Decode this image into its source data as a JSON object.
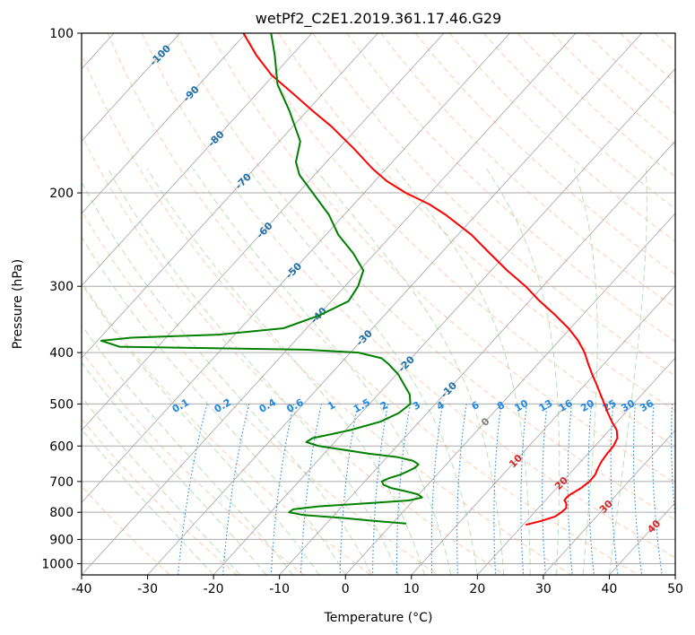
{
  "chart_data": {
    "type": "line",
    "subtype": "skew-t log-p diagram",
    "title": "wetPf2_C2E1.2019.361.17.46.G29",
    "xlabel": "Temperature (°C)",
    "ylabel": "Pressure (hPa)",
    "xlim": [
      -40,
      50
    ],
    "ylim": [
      1050,
      100
    ],
    "y_scale": "log",
    "x_ticks": [
      -40,
      -30,
      -20,
      -10,
      0,
      10,
      20,
      30,
      40,
      50
    ],
    "y_ticks": [
      100,
      200,
      300,
      400,
      500,
      600,
      700,
      800,
      900,
      1000
    ],
    "grid": "horizontal at pressure ticks",
    "series": [
      {
        "role": "temperature",
        "color": "#ff0000",
        "points": [
          [
            845,
            20.4
          ],
          [
            830,
            22.3
          ],
          [
            815,
            23.7
          ],
          [
            800,
            24.1
          ],
          [
            785,
            24.2
          ],
          [
            770,
            23.6
          ],
          [
            760,
            22.9
          ],
          [
            750,
            22.8
          ],
          [
            740,
            23.0
          ],
          [
            720,
            23.7
          ],
          [
            700,
            24.1
          ],
          [
            680,
            24.0
          ],
          [
            660,
            23.5
          ],
          [
            640,
            23.1
          ],
          [
            620,
            22.9
          ],
          [
            600,
            22.8
          ],
          [
            580,
            22.3
          ],
          [
            560,
            21.1
          ],
          [
            540,
            19.2
          ],
          [
            520,
            17.4
          ],
          [
            500,
            15.6
          ],
          [
            460,
            11.8
          ],
          [
            440,
            9.7
          ],
          [
            420,
            7.6
          ],
          [
            400,
            5.5
          ],
          [
            380,
            2.9
          ],
          [
            360,
            -0.3
          ],
          [
            340,
            -4.1
          ],
          [
            320,
            -8.4
          ],
          [
            300,
            -12.6
          ],
          [
            280,
            -17.6
          ],
          [
            260,
            -22.6
          ],
          [
            240,
            -27.9
          ],
          [
            220,
            -34.6
          ],
          [
            210,
            -38.6
          ],
          [
            200,
            -43.7
          ],
          [
            190,
            -48.2
          ],
          [
            180,
            -52.1
          ],
          [
            165,
            -57.7
          ],
          [
            150,
            -64.1
          ],
          [
            140,
            -69.2
          ],
          [
            130,
            -74.5
          ],
          [
            120,
            -80.3
          ],
          [
            110,
            -85.4
          ],
          [
            100,
            -90.4
          ]
        ]
      },
      {
        "role": "dewpoint",
        "color": "#008000",
        "points": [
          [
            840,
            2.1
          ],
          [
            830,
            -3.4
          ],
          [
            820,
            -8.3
          ],
          [
            810,
            -14.6
          ],
          [
            800,
            -17.2
          ],
          [
            790,
            -17.0
          ],
          [
            780,
            -13.6
          ],
          [
            770,
            -6.8
          ],
          [
            760,
            -0.7
          ],
          [
            750,
            0.9
          ],
          [
            740,
            -0.2
          ],
          [
            730,
            -2.5
          ],
          [
            720,
            -5.1
          ],
          [
            710,
            -6.7
          ],
          [
            700,
            -7.4
          ],
          [
            690,
            -6.8
          ],
          [
            680,
            -5.6
          ],
          [
            670,
            -4.9
          ],
          [
            660,
            -4.3
          ],
          [
            650,
            -4.2
          ],
          [
            640,
            -5.5
          ],
          [
            630,
            -8.3
          ],
          [
            620,
            -13.3
          ],
          [
            600,
            -21.9
          ],
          [
            590,
            -24.3
          ],
          [
            580,
            -23.9
          ],
          [
            570,
            -21.6
          ],
          [
            560,
            -19.3
          ],
          [
            540,
            -15.9
          ],
          [
            520,
            -14.3
          ],
          [
            500,
            -13.8
          ],
          [
            480,
            -15.2
          ],
          [
            460,
            -17.4
          ],
          [
            440,
            -19.7
          ],
          [
            420,
            -22.7
          ],
          [
            410,
            -24.5
          ],
          [
            400,
            -28.8
          ],
          [
            395,
            -37.2
          ],
          [
            390,
            -65.8
          ],
          [
            380,
            -69.4
          ],
          [
            375,
            -65.3
          ],
          [
            370,
            -52.5
          ],
          [
            360,
            -43.5
          ],
          [
            340,
            -39.8
          ],
          [
            320,
            -37.4
          ],
          [
            300,
            -38.0
          ],
          [
            280,
            -39.4
          ],
          [
            260,
            -43.3
          ],
          [
            240,
            -48.1
          ],
          [
            220,
            -52.3
          ],
          [
            200,
            -57.8
          ],
          [
            185,
            -62.3
          ],
          [
            175,
            -64.6
          ],
          [
            160,
            -66.8
          ],
          [
            140,
            -72.7
          ],
          [
            125,
            -78.1
          ],
          [
            110,
            -82.6
          ],
          [
            100,
            -86.2
          ]
        ]
      }
    ],
    "isotherm_labels": [
      {
        "t": -100,
        "text": "-100"
      },
      {
        "t": -90,
        "text": "-90"
      },
      {
        "t": -80,
        "text": "-80"
      },
      {
        "t": -70,
        "text": "-70"
      },
      {
        "t": -60,
        "text": "-60"
      },
      {
        "t": -50,
        "text": "-50"
      },
      {
        "t": -40,
        "text": "-40"
      },
      {
        "t": -30,
        "text": "-30"
      },
      {
        "t": -20,
        "text": "-20"
      },
      {
        "t": -10,
        "text": "-10"
      }
    ],
    "warm_isotherm_labels": [
      {
        "t": 0,
        "text": "0"
      },
      {
        "t": 10,
        "text": "10"
      },
      {
        "t": 20,
        "text": "20"
      },
      {
        "t": 30,
        "text": "30"
      },
      {
        "t": 40,
        "text": "40"
      }
    ],
    "mixing_ratios": [
      {
        "w": 0.1,
        "text": "0.1"
      },
      {
        "w": 0.2,
        "text": "0.2"
      },
      {
        "w": 0.4,
        "text": "0.4"
      },
      {
        "w": 0.6,
        "text": "0.6"
      },
      {
        "w": 1,
        "text": "1"
      },
      {
        "w": 1.5,
        "text": "1.5"
      },
      {
        "w": 2,
        "text": "2"
      },
      {
        "w": 3,
        "text": "3"
      },
      {
        "w": 4,
        "text": "4"
      },
      {
        "w": 6,
        "text": "6"
      },
      {
        "w": 8,
        "text": "8"
      },
      {
        "w": 10,
        "text": "10"
      },
      {
        "w": 13,
        "text": "13"
      },
      {
        "w": 16,
        "text": "16"
      },
      {
        "w": 20,
        "text": "20"
      },
      {
        "w": 25,
        "text": "25"
      },
      {
        "w": 30,
        "text": "30"
      },
      {
        "w": 36,
        "text": "36"
      }
    ],
    "colors": {
      "temperature": "#ff0000",
      "dewpoint": "#008000",
      "isotherm": "#999999",
      "dry_adiabat": "#ff9966",
      "moist_adiabat": "#66bb66",
      "mixing_ratio": "#1e88e5",
      "cold_label": "#1f6fa8",
      "warm_label": "#d62728",
      "zero_label": "#7f7f7f"
    }
  }
}
